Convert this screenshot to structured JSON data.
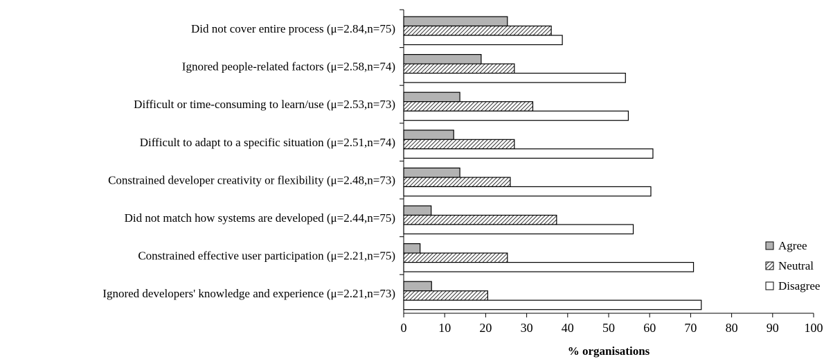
{
  "chart_data": {
    "type": "bar",
    "orientation": "horizontal",
    "categories": [
      "Did not cover entire process (μ=2.84,n=75)",
      "Ignored people-related factors (μ=2.58,n=74)",
      "Difficult or time-consuming to learn/use (μ=2.53,n=73)",
      "Difficult to adapt to a specific situation (μ=2.51,n=74)",
      "Constrained developer creativity or flexibility (μ=2.48,n=73)",
      "Did not match how systems are developed (μ=2.44,n=75)",
      "Constrained effective user participation (μ=2.21,n=75)",
      "Ignored developers' knowledge and experience (μ=2.21,n=73)"
    ],
    "series": [
      {
        "name": "Agree",
        "values": [
          25.3,
          18.9,
          13.7,
          12.2,
          13.7,
          6.7,
          4.0,
          6.8
        ]
      },
      {
        "name": "Neutral",
        "values": [
          36.0,
          27.0,
          31.5,
          27.0,
          26.0,
          37.3,
          25.3,
          20.5
        ]
      },
      {
        "name": "Disagree",
        "values": [
          38.7,
          54.1,
          54.8,
          60.8,
          60.3,
          56.0,
          70.7,
          72.6
        ]
      }
    ],
    "xlabel": "% organisations",
    "ylabel": "",
    "xlim": [
      0,
      100
    ],
    "x_ticks": [
      "0",
      "10",
      "20",
      "30",
      "40",
      "50",
      "60",
      "70",
      "80",
      "90",
      "100"
    ],
    "grid": false,
    "legend_position": "bottom-right",
    "colors": {
      "Agree": "#b3b3b3",
      "Neutral": "hatched",
      "Disagree": "#ffffff",
      "edge": "#000000"
    }
  }
}
